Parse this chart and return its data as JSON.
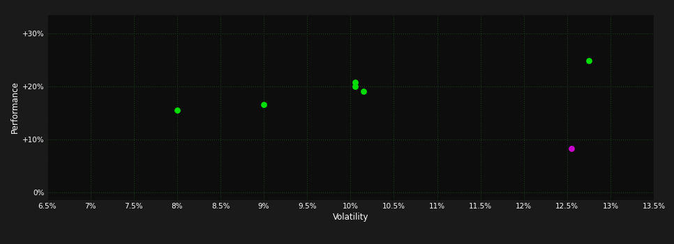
{
  "background_color": "#1a1a1a",
  "plot_bg_color": "#0d0d0d",
  "grid_color": "#1e3a1e",
  "text_color": "#ffffff",
  "xlabel": "Volatility",
  "ylabel": "Performance",
  "xlim": [
    0.065,
    0.135
  ],
  "ylim": [
    -0.015,
    0.335
  ],
  "xticks": [
    0.065,
    0.07,
    0.075,
    0.08,
    0.085,
    0.09,
    0.095,
    0.1,
    0.105,
    0.11,
    0.115,
    0.12,
    0.125,
    0.13,
    0.135
  ],
  "yticks": [
    0.0,
    0.1,
    0.2,
    0.3
  ],
  "ytick_labels": [
    "0%",
    "+10%",
    "+20%",
    "+30%"
  ],
  "xtick_labels": [
    "6.5%",
    "7%",
    "7.5%",
    "8%",
    "8.5%",
    "9%",
    "9.5%",
    "10%",
    "10.5%",
    "11%",
    "11.5%",
    "12%",
    "12.5%",
    "13%",
    "13.5%"
  ],
  "green_points": [
    [
      0.08,
      0.155
    ],
    [
      0.09,
      0.165
    ],
    [
      0.1005,
      0.208
    ],
    [
      0.1005,
      0.2
    ],
    [
      0.1015,
      0.19
    ],
    [
      0.1275,
      0.248
    ]
  ],
  "magenta_points": [
    [
      0.1255,
      0.083
    ]
  ],
  "green_color": "#00dd00",
  "magenta_color": "#cc00cc",
  "marker_size": 40
}
